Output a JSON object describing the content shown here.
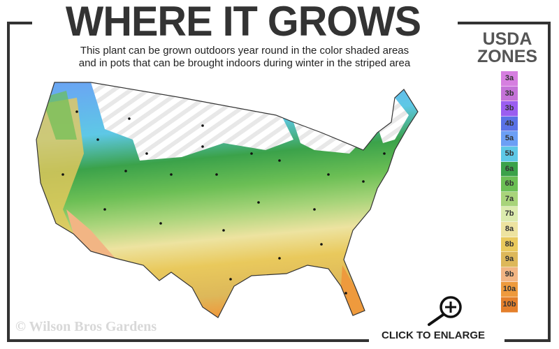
{
  "header": {
    "title": "WHERE IT GROWS",
    "subtitle_line1": "This plant can be grown outdoors year round in the color shaded areas",
    "subtitle_line2": "and in pots that can be brought indoors during winter in the striped area"
  },
  "legend": {
    "title_line1": "USDA",
    "title_line2": "ZONES",
    "zones": [
      {
        "label": "3a",
        "color": "#d67fe0"
      },
      {
        "label": "3b",
        "color": "#c473d8"
      },
      {
        "label": "3b",
        "color": "#9b5ef0"
      },
      {
        "label": "4b",
        "color": "#5a72e6"
      },
      {
        "label": "5a",
        "color": "#6c9ff5"
      },
      {
        "label": "5b",
        "color": "#5ec8e6"
      },
      {
        "label": "6a",
        "color": "#3ba24a"
      },
      {
        "label": "6b",
        "color": "#6cbf55"
      },
      {
        "label": "7a",
        "color": "#a8d47a"
      },
      {
        "label": "7b",
        "color": "#dcebae"
      },
      {
        "label": "8a",
        "color": "#ede3a0"
      },
      {
        "label": "8b",
        "color": "#e9c95c"
      },
      {
        "label": "9a",
        "color": "#ddb85a"
      },
      {
        "label": "9b",
        "color": "#f2b584"
      },
      {
        "label": "10a",
        "color": "#ee9a3d"
      },
      {
        "label": "10b",
        "color": "#e47f2b"
      }
    ]
  },
  "footer": {
    "copyright": "© Wilson Bros Gardens",
    "enlarge_label": "CLICK TO ENLARGE",
    "enlarge_icon": "zoom-in-magnifier-icon"
  }
}
